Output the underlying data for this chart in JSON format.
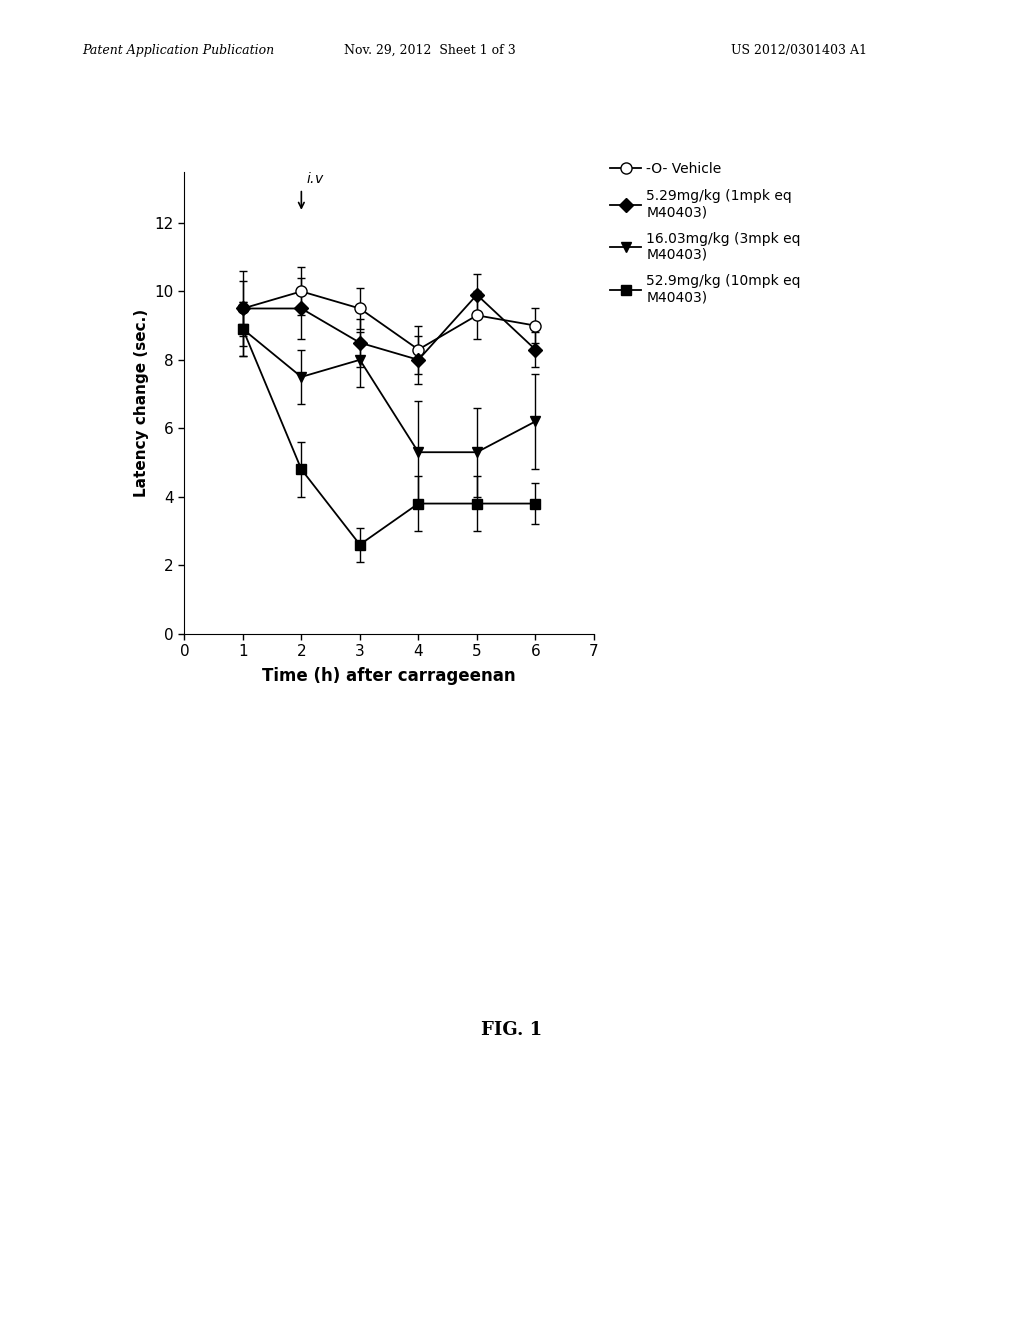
{
  "vehicle": {
    "x": [
      1,
      2,
      3,
      4,
      5,
      6
    ],
    "y": [
      9.5,
      10.0,
      9.5,
      8.3,
      9.3,
      9.0
    ],
    "yerr": [
      0.8,
      0.7,
      0.6,
      0.7,
      0.7,
      0.5
    ],
    "label": "-O- Vehicle",
    "color": "#000000",
    "marker": "o",
    "markerfacecolor": "white",
    "markersize": 8
  },
  "dose1": {
    "x": [
      1,
      2,
      3,
      4,
      5,
      6
    ],
    "y": [
      9.5,
      9.5,
      8.5,
      8.0,
      9.9,
      8.3
    ],
    "yerr": [
      1.1,
      0.9,
      0.7,
      0.7,
      0.6,
      0.5
    ],
    "label": "5.29mg/kg (1mpk eq\nM40403)",
    "color": "#000000",
    "marker": "D",
    "markerfacecolor": "#000000",
    "markersize": 7
  },
  "dose2": {
    "x": [
      1,
      2,
      3,
      4,
      5,
      6
    ],
    "y": [
      8.9,
      7.5,
      8.0,
      5.3,
      5.3,
      6.2
    ],
    "yerr": [
      0.8,
      0.8,
      0.8,
      1.5,
      1.3,
      1.4
    ],
    "label": "16.03mg/kg (3mpk eq\nM40403)",
    "color": "#000000",
    "marker": "v",
    "markerfacecolor": "#000000",
    "markersize": 7
  },
  "dose3": {
    "x": [
      1,
      2,
      3,
      4,
      5,
      6
    ],
    "y": [
      8.9,
      4.8,
      2.6,
      3.8,
      3.8,
      3.8
    ],
    "yerr": [
      0.8,
      0.8,
      0.5,
      0.8,
      0.8,
      0.6
    ],
    "label": "52.9mg/kg (10mpk eq\nM40403)",
    "color": "#000000",
    "marker": "s",
    "markerfacecolor": "#000000",
    "markersize": 7
  },
  "xlabel": "Time (h) after carrageenan",
  "ylabel": "Latency change (sec.)",
  "ylim": [
    0,
    13.5
  ],
  "xlim": [
    0,
    7
  ],
  "yticks": [
    0,
    2,
    4,
    6,
    8,
    10,
    12
  ],
  "background_color": "#ffffff",
  "font_color": "#000000",
  "patent_left": "Patent Application Publication",
  "patent_mid": "Nov. 29, 2012  Sheet 1 of 3",
  "patent_right": "US 2012/0301403 A1",
  "fig_label": "FIG. 1"
}
